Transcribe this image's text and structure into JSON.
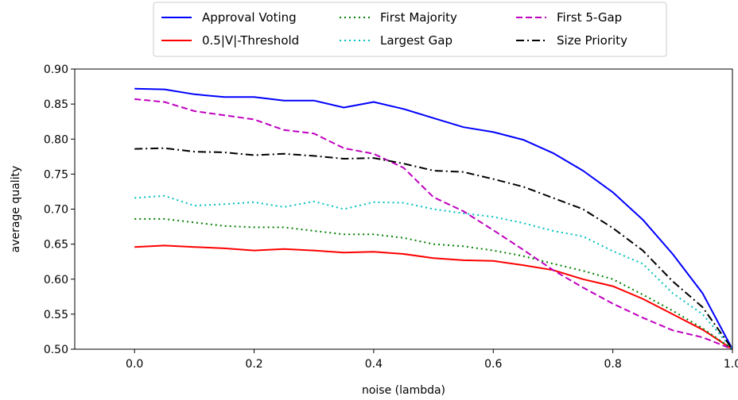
{
  "chart_data": {
    "type": "line",
    "xlabel": "noise (lambda)",
    "ylabel": "average quality",
    "xlim": [
      -0.1,
      1.0
    ],
    "ylim": [
      0.5,
      0.9
    ],
    "xticks": [
      "0.0",
      "0.2",
      "0.4",
      "0.6",
      "0.8",
      "1.0"
    ],
    "xtick_values": [
      0.0,
      0.2,
      0.4,
      0.6,
      0.8,
      1.0
    ],
    "yticks": [
      "0.50",
      "0.55",
      "0.60",
      "0.65",
      "0.70",
      "0.75",
      "0.80",
      "0.85",
      "0.90"
    ],
    "ytick_values": [
      0.5,
      0.55,
      0.6,
      0.65,
      0.7,
      0.75,
      0.8,
      0.85,
      0.9
    ],
    "grid": false,
    "legend_position": "top-center",
    "x": [
      0.0,
      0.05,
      0.1,
      0.15,
      0.2,
      0.25,
      0.3,
      0.35,
      0.4,
      0.45,
      0.5,
      0.55,
      0.6,
      0.65,
      0.7,
      0.75,
      0.8,
      0.85,
      0.9,
      0.95,
      1.0
    ],
    "series": [
      {
        "name": "Approval Voting",
        "color": "#0000ff",
        "dash": "solid",
        "values": [
          0.872,
          0.871,
          0.864,
          0.86,
          0.86,
          0.855,
          0.855,
          0.845,
          0.853,
          0.843,
          0.83,
          0.817,
          0.81,
          0.799,
          0.78,
          0.755,
          0.724,
          0.685,
          0.636,
          0.58,
          0.5
        ]
      },
      {
        "name": "0.5|V|-Threshold",
        "color": "#ff0000",
        "dash": "solid",
        "values": [
          0.646,
          0.648,
          0.646,
          0.644,
          0.641,
          0.643,
          0.641,
          0.638,
          0.639,
          0.636,
          0.63,
          0.627,
          0.626,
          0.62,
          0.613,
          0.6,
          0.59,
          0.572,
          0.55,
          0.528,
          0.5
        ]
      },
      {
        "name": "First Majority",
        "color": "#008000",
        "dash": "dotted",
        "values": [
          0.686,
          0.686,
          0.681,
          0.676,
          0.674,
          0.674,
          0.669,
          0.664,
          0.664,
          0.659,
          0.65,
          0.647,
          0.641,
          0.633,
          0.622,
          0.612,
          0.6,
          0.578,
          0.555,
          0.53,
          0.5
        ]
      },
      {
        "name": "Largest Gap",
        "color": "#00bfbf",
        "dash": "dotted",
        "values": [
          0.716,
          0.719,
          0.705,
          0.707,
          0.71,
          0.703,
          0.711,
          0.7,
          0.71,
          0.709,
          0.7,
          0.694,
          0.689,
          0.68,
          0.669,
          0.661,
          0.64,
          0.622,
          0.58,
          0.55,
          0.5
        ]
      },
      {
        "name": "First 5-Gap",
        "color": "#bf00bf",
        "dash": "dashed",
        "values": [
          0.857,
          0.853,
          0.84,
          0.834,
          0.828,
          0.813,
          0.808,
          0.787,
          0.779,
          0.759,
          0.717,
          0.697,
          0.67,
          0.642,
          0.613,
          0.588,
          0.565,
          0.545,
          0.527,
          0.517,
          0.5
        ]
      },
      {
        "name": "Size Priority",
        "color": "#000000",
        "dash": "dashdot",
        "values": [
          0.786,
          0.787,
          0.782,
          0.781,
          0.777,
          0.779,
          0.776,
          0.772,
          0.773,
          0.765,
          0.755,
          0.753,
          0.743,
          0.732,
          0.716,
          0.7,
          0.673,
          0.641,
          0.597,
          0.56,
          0.5
        ]
      }
    ]
  }
}
